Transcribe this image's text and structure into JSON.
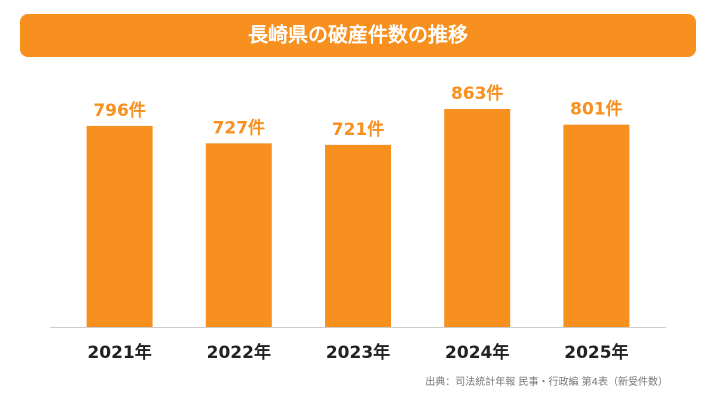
{
  "chart_data": {
    "type": "bar",
    "title": "長崎県の破産件数の推移",
    "categories": [
      "2021年",
      "2022年",
      "2023年",
      "2024年",
      "2025年"
    ],
    "values": [
      796,
      727,
      721,
      863,
      801
    ],
    "value_labels": [
      "796件",
      "727件",
      "721件",
      "863件",
      "801件"
    ],
    "color": "#f7901e",
    "source": "出典：司法統計年報 民事・行政編 第4表（新受件数）"
  }
}
